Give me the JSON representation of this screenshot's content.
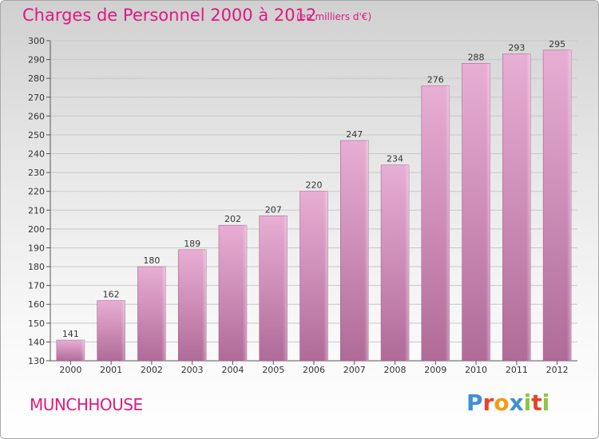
{
  "header": {
    "title": "Charges de Personnel 2000 à 2012",
    "subtitle": "(en milliers d'€)"
  },
  "footer": {
    "commune": "MUNCHHOUSE",
    "logo": "Proxiti",
    "logo_colors": [
      "#3d8fd6",
      "#e8412c",
      "#f39c12",
      "#3d8fd6",
      "#8cc63f",
      "#e8412c",
      "#8cc63f"
    ]
  },
  "colors": {
    "bar_top": "#e8aed4",
    "bar_bottom": "#b06b98",
    "accent": "#e0197d"
  },
  "chart_data": {
    "type": "bar",
    "categories": [
      "2000",
      "2001",
      "2002",
      "2003",
      "2004",
      "2005",
      "2006",
      "2007",
      "2008",
      "2009",
      "2010",
      "2011",
      "2012"
    ],
    "values": [
      141,
      162,
      180,
      189,
      202,
      207,
      220,
      247,
      234,
      276,
      288,
      293,
      295
    ],
    "ylim": [
      130,
      300
    ],
    "yticks": [
      130,
      140,
      150,
      160,
      170,
      180,
      190,
      200,
      210,
      220,
      230,
      240,
      250,
      260,
      270,
      280,
      290,
      300
    ],
    "grid": true
  }
}
